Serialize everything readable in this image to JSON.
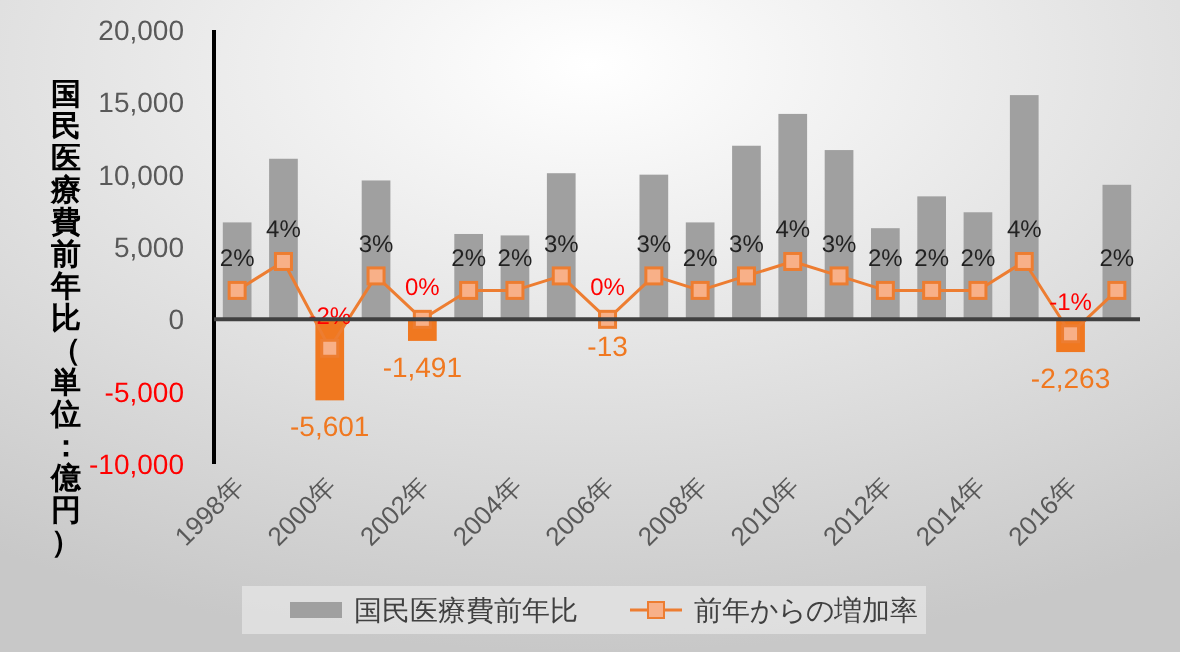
{
  "chart_data": {
    "type": "bar",
    "ylabel": "国民医療費前年比（単位：億円）",
    "categories": [
      "1998年",
      null,
      "2000年",
      null,
      "2002年",
      null,
      "2004年",
      null,
      "2006年",
      null,
      "2008年",
      null,
      "2010年",
      null,
      "2012年",
      null,
      "2014年",
      null,
      "2016年",
      null
    ],
    "ylim": [
      -10000,
      20000
    ],
    "yticks": [
      {
        "value": -10000,
        "label": "-10,000"
      },
      {
        "value": -5000,
        "label": "-5,000"
      },
      0,
      {
        "value": 5000,
        "label": "5,000"
      },
      {
        "value": 10000,
        "label": "10,000"
      },
      {
        "value": 15000,
        "label": "15,000"
      },
      {
        "value": 20000,
        "label": "20,000"
      }
    ],
    "y2lim": [
      -10,
      20
    ],
    "legend": "bottom",
    "marker": "square",
    "line_style": "solid",
    "series": [
      {
        "name": "国民医療費前年比",
        "color": "#a0a0a0",
        "colors": [
          "#a0a0a0",
          "#a0a0a0",
          "#f07820",
          "#a0a0a0",
          "#f07820",
          "#a0a0a0",
          "#a0a0a0",
          "#a0a0a0",
          "#f07820",
          "#a0a0a0",
          "#a0a0a0",
          "#a0a0a0",
          "#a0a0a0",
          "#a0a0a0",
          "#a0a0a0",
          "#a0a0a0",
          "#a0a0a0",
          "#a0a0a0",
          "#f07820",
          "#a0a0a0"
        ],
        "values": [
          6700,
          11100,
          -5601,
          9600,
          -1491,
          5900,
          5800,
          10100,
          -13,
          10000,
          6700,
          12000,
          14200,
          11700,
          6300,
          8500,
          7400,
          15500,
          -2263,
          9300
        ],
        "value_labels": [
          null,
          null,
          "-5,601",
          null,
          "-1,491",
          null,
          null,
          null,
          "-13",
          null,
          null,
          null,
          null,
          null,
          null,
          null,
          null,
          null,
          "-2,263",
          null
        ]
      },
      {
        "name": "前年からの増加率",
        "type": "line",
        "axis": "y2",
        "color": "#ed7d31",
        "values": [
          2,
          4,
          -2,
          3,
          0,
          2,
          2,
          3,
          0,
          3,
          2,
          3,
          4,
          3,
          2,
          2,
          2,
          4,
          -1,
          2
        ],
        "value_labels": [
          "2%",
          "4%",
          "-2%",
          "3%",
          "0%",
          "2%",
          "2%",
          "3%",
          "0%",
          "3%",
          "2%",
          "3%",
          "4%",
          "3%",
          "2%",
          "2%",
          "2%",
          "4%",
          "-1%",
          "2%"
        ]
      }
    ]
  }
}
